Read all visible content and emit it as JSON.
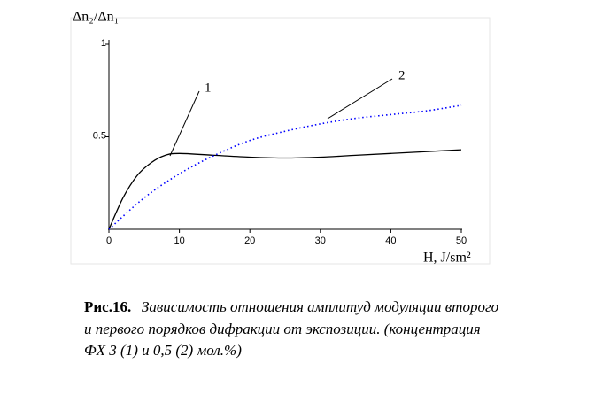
{
  "chart_data": {
    "type": "line",
    "ylabel": "Δn₂/Δn₁",
    "xlabel": "H, J/sm²",
    "xlim": [
      0,
      50
    ],
    "xticks": [
      0,
      10,
      20,
      30,
      40,
      50
    ],
    "ylim": [
      0,
      1
    ],
    "yticks": [
      0.5,
      1
    ],
    "series": [
      {
        "name": "1",
        "color": "#000000",
        "style": "solid",
        "x": [
          0,
          2,
          4,
          6,
          8,
          10,
          15,
          20,
          25,
          30,
          35,
          40,
          45,
          50
        ],
        "values": [
          0,
          0.17,
          0.29,
          0.36,
          0.4,
          0.41,
          0.4,
          0.39,
          0.385,
          0.39,
          0.4,
          0.41,
          0.42,
          0.43
        ]
      },
      {
        "name": "2",
        "color": "#0000ff",
        "style": "dotted",
        "x": [
          0,
          5,
          10,
          15,
          20,
          25,
          30,
          35,
          40,
          45,
          50
        ],
        "values": [
          0,
          0.17,
          0.3,
          0.4,
          0.48,
          0.53,
          0.57,
          0.6,
          0.62,
          0.64,
          0.67
        ]
      }
    ],
    "caption": {
      "label": "Рис.16.",
      "lines": [
        "Зависимость отношения амплитуд модуляции второго",
        "и первого порядков дифракции от экспозиции. (концентрация",
        "ФХ 3 (1) и 0,5 (2) мол.%)"
      ]
    }
  }
}
